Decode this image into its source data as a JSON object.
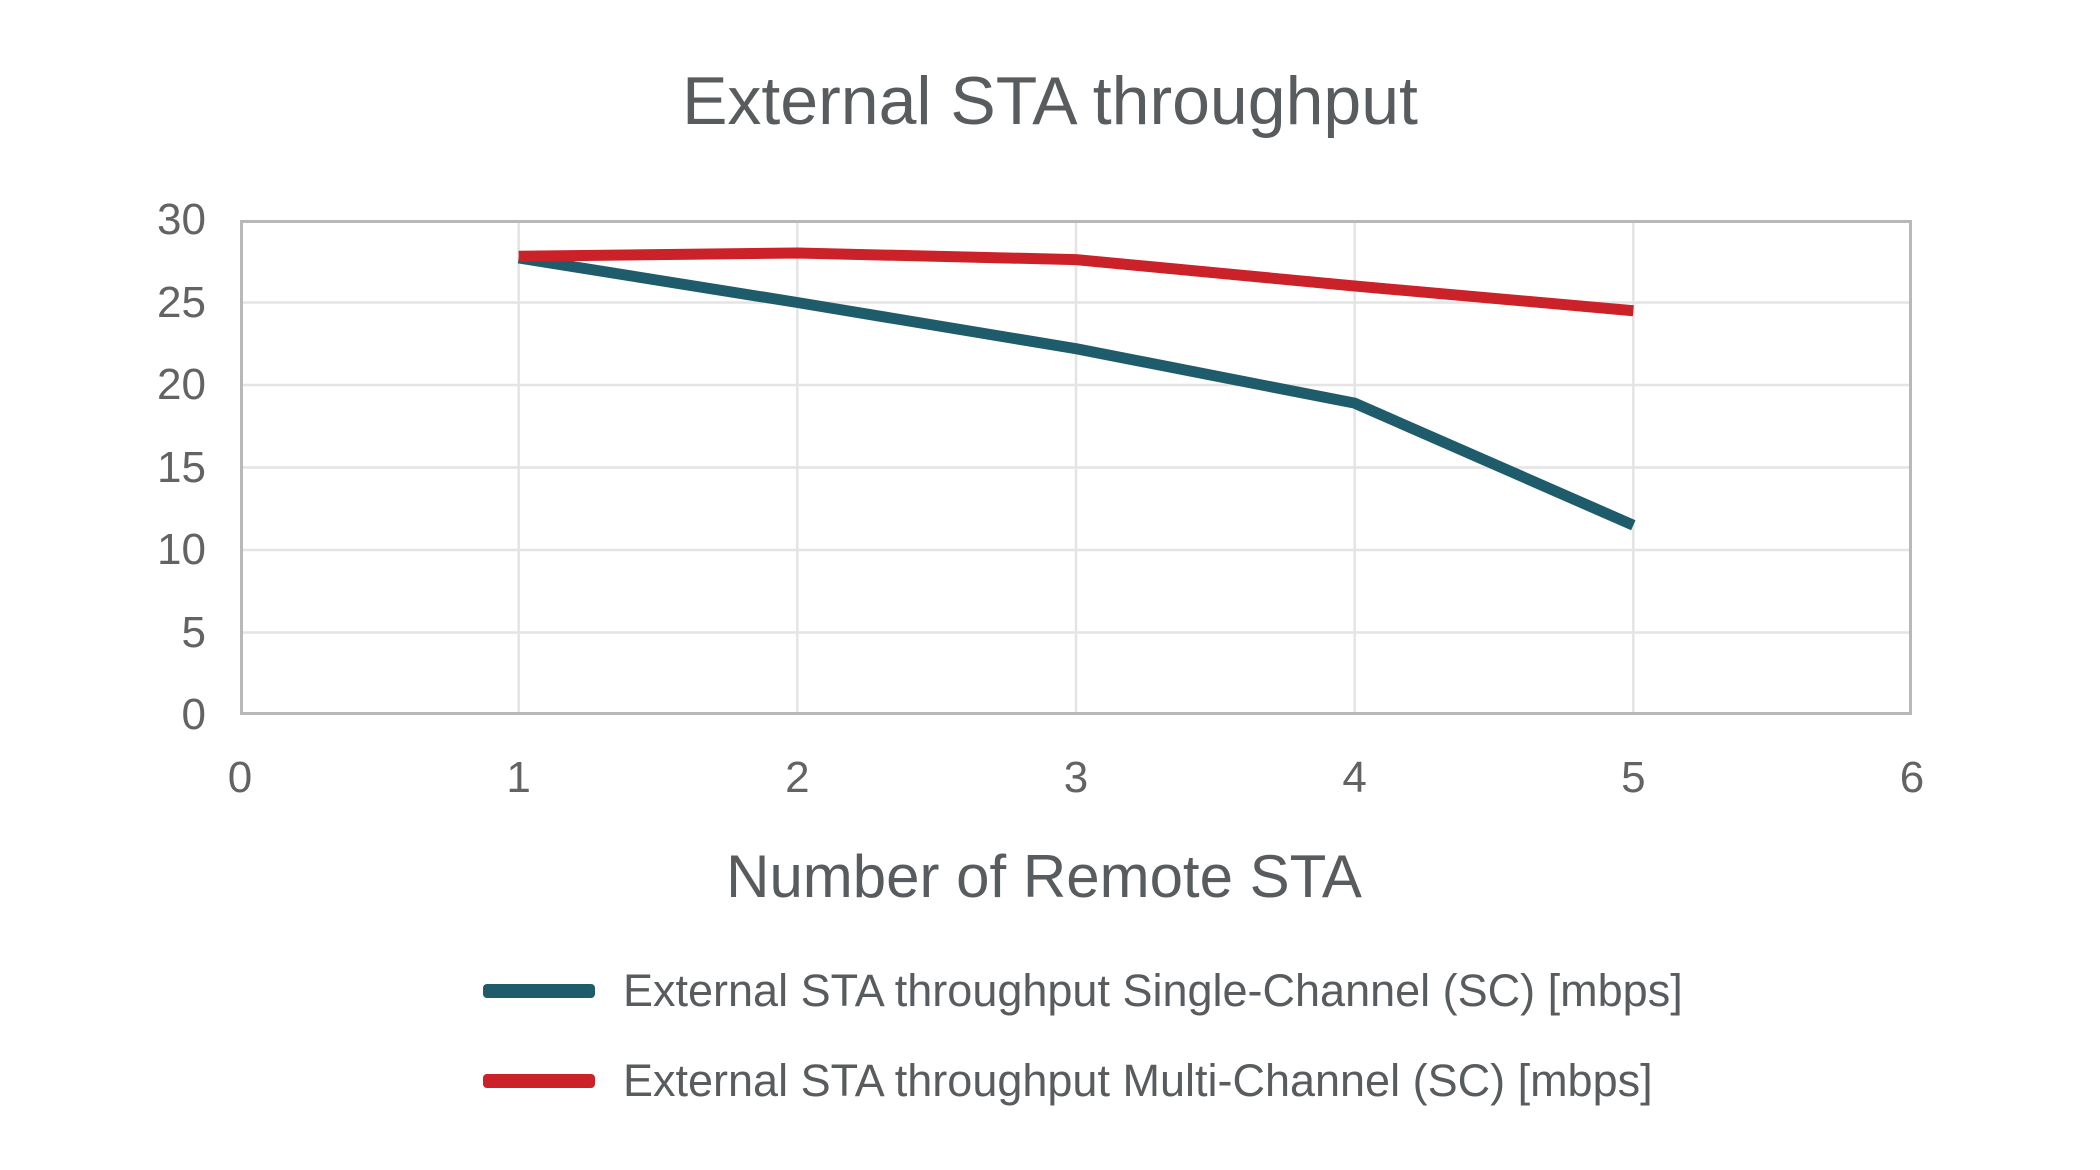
{
  "title": "External STA throughput",
  "colors": {
    "single_channel": "#1f5c6b",
    "multi_channel": "#cb2128",
    "gridline": "#e4e4e4",
    "plot_border": "#b8b8b8",
    "title_text": "#595c5e",
    "tick_text": "#636363"
  },
  "chart_data": {
    "type": "line",
    "title": "External STA throughput",
    "xlabel": "Number of Remote STA",
    "ylabel": "",
    "xlim": [
      0,
      6
    ],
    "ylim": [
      0,
      30
    ],
    "x_ticks": [
      0,
      1,
      2,
      3,
      4,
      5,
      6
    ],
    "y_ticks": [
      0,
      5,
      10,
      15,
      20,
      25,
      30
    ],
    "grid": true,
    "legend_position": "bottom-left",
    "x": [
      1,
      2,
      3,
      4,
      5
    ],
    "series": [
      {
        "name": "External STA throughput Single-Channel (SC) [mbps]",
        "color": "#1f5c6b",
        "values": [
          27.7,
          25.0,
          22.2,
          18.9,
          11.5
        ]
      },
      {
        "name": "External STA throughput Multi-Channel (SC) [mbps]",
        "color": "#cb2128",
        "values": [
          27.8,
          28.0,
          27.6,
          26.0,
          24.5
        ]
      }
    ]
  }
}
